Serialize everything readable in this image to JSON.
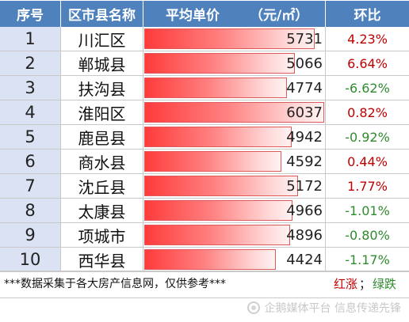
{
  "header": {
    "idx_label": "序号",
    "name_label": "区市县名称",
    "price_label": "平均单价",
    "price_unit": "（元/㎡）",
    "change_label": "环比"
  },
  "chart_data": {
    "type": "table",
    "columns": [
      "序号",
      "区市县名称",
      "平均单价（元/㎡）",
      "环比"
    ],
    "rows": [
      {
        "idx": "1",
        "name": "川汇区",
        "price": 5731,
        "change": "4.23%",
        "trend": "up"
      },
      {
        "idx": "2",
        "name": "郸城县",
        "price": 5066,
        "change": "6.64%",
        "trend": "up"
      },
      {
        "idx": "3",
        "name": "扶沟县",
        "price": 4774,
        "change": "-6.62%",
        "trend": "down"
      },
      {
        "idx": "4",
        "name": "淮阳区",
        "price": 6037,
        "change": "0.82%",
        "trend": "up"
      },
      {
        "idx": "5",
        "name": "鹿邑县",
        "price": 4942,
        "change": "-0.92%",
        "trend": "down"
      },
      {
        "idx": "6",
        "name": "商水县",
        "price": 4592,
        "change": "0.44%",
        "trend": "up"
      },
      {
        "idx": "7",
        "name": "沈丘县",
        "price": 5172,
        "change": "1.77%",
        "trend": "up"
      },
      {
        "idx": "8",
        "name": "太康县",
        "price": 4966,
        "change": "-1.01%",
        "trend": "down"
      },
      {
        "idx": "9",
        "name": "项城市",
        "price": 4896,
        "change": "-0.80%",
        "trend": "down"
      },
      {
        "idx": "10",
        "name": "西华县",
        "price": 4424,
        "change": "-1.17%",
        "trend": "down"
      }
    ],
    "bar_range": [
      0,
      6037
    ]
  },
  "colors": {
    "header_bg": "#4f81bd",
    "index_bg": "#dbe2f3",
    "bar": "#ff3b3b",
    "up": "#c00000",
    "down": "#2e8b2e"
  },
  "footer": {
    "note": "***数据采集于各大房产信息网，仅供参考***",
    "legend_up": "红涨",
    "legend_sep": "；",
    "legend_down": "绿跌"
  },
  "watermark": {
    "text": "企鹅媒体平台 信息传递先锋",
    "icon": "penguin-logo-icon"
  }
}
